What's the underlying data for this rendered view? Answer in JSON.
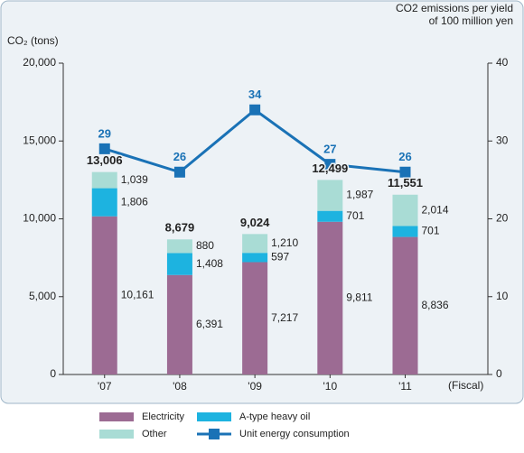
{
  "chart_data": {
    "type": "bar",
    "stacked": true,
    "y_label": "CO₂ (tons)",
    "y2_label": [
      "CO2 emissions per yield",
      "of 100 million yen"
    ],
    "x_label": "(Fiscal)",
    "categories": [
      "'07",
      "'08",
      "'09",
      "'10",
      "'11"
    ],
    "series": [
      {
        "name": "Electricity",
        "color": "#9c6b93",
        "values": [
          10161,
          6391,
          7217,
          9811,
          8836
        ],
        "value_labels": [
          "10,161",
          "6,391",
          "7,217",
          "9,811",
          "8,836"
        ]
      },
      {
        "name": "A-type heavy oil",
        "color": "#1db3e0",
        "values": [
          1806,
          1408,
          597,
          701,
          701
        ],
        "value_labels": [
          "1,806",
          "1,408",
          "597",
          "701",
          "701"
        ]
      },
      {
        "name": "Other",
        "color": "#a9dcd5",
        "values": [
          1039,
          880,
          1210,
          1987,
          2014
        ],
        "value_labels": [
          "1,039",
          "880",
          "1,210",
          "1,987",
          "2,014"
        ]
      },
      {
        "name": "Unit energy consumption",
        "type": "line",
        "axis": "y2",
        "color": "#1a72b6",
        "values": [
          29,
          26,
          34,
          27,
          26
        ]
      }
    ],
    "totals": {
      "values": [
        13006,
        8679,
        9024,
        12499,
        11551
      ],
      "value_labels": [
        "13,006",
        "8,679",
        "9,024",
        "12,499",
        "11,551"
      ]
    },
    "ylim": [
      0,
      20000
    ],
    "yticks": [
      0,
      {
        "value": 5000,
        "label": "5,000"
      },
      {
        "value": 10000,
        "label": "10,000"
      },
      {
        "value": 15000,
        "label": "15,000"
      },
      {
        "value": 20000,
        "label": "20,000"
      }
    ],
    "y2lim": [
      0,
      40
    ],
    "y2ticks": [
      0,
      10,
      20,
      30,
      40
    ],
    "legend": "bottom"
  }
}
